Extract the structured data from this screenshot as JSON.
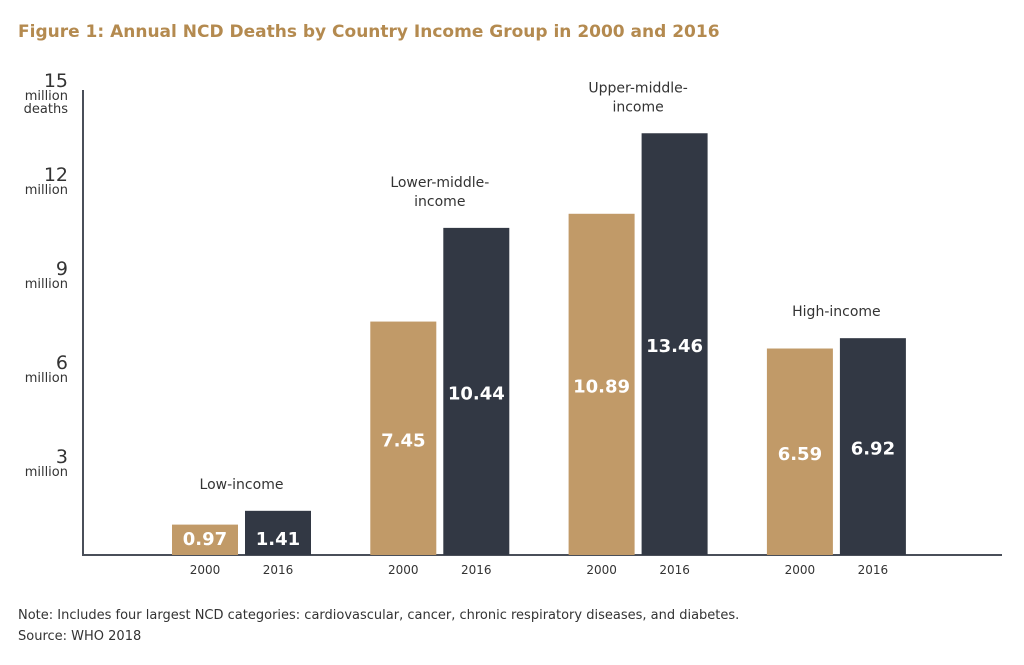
{
  "chart_data": {
    "type": "bar",
    "title": "Figure 1: Annual NCD Deaths by Country Income Group in 2000 and 2016",
    "categories": [
      "Low-income",
      "Lower-middle-income",
      "Upper-middle-income",
      "High-income"
    ],
    "category_labels": [
      [
        "Low-income"
      ],
      [
        "Lower-middle-",
        "income"
      ],
      [
        "Upper-middle-",
        "income"
      ],
      [
        "High-income"
      ]
    ],
    "series": [
      {
        "name": "2000",
        "values": [
          0.97,
          7.45,
          10.89,
          6.59
        ],
        "color": "#c19a68"
      },
      {
        "name": "2016",
        "values": [
          1.41,
          10.44,
          13.46,
          6.92
        ],
        "color": "#323844"
      }
    ],
    "data_labels": [
      [
        "0.97",
        "7.45",
        "10.89",
        "6.59"
      ],
      [
        "1.41",
        "10.44",
        "13.46",
        "6.92"
      ]
    ],
    "ylim": [
      0,
      15
    ],
    "yticks": [
      {
        "value": 3,
        "label": [
          "3",
          "million"
        ]
      },
      {
        "value": 6,
        "label": [
          "6",
          "million"
        ]
      },
      {
        "value": 9,
        "label": [
          "9",
          "million"
        ]
      },
      {
        "value": 12,
        "label": [
          "12",
          "million"
        ]
      },
      {
        "value": 15,
        "label": [
          "15",
          "million",
          "deaths"
        ]
      }
    ],
    "grid": false,
    "legend": "none"
  },
  "notes": {
    "note": "Note: Includes four largest NCD categories: cardiovascular, cancer, chronic respiratory diseases, and diabetes.",
    "source": "Source: WHO 2018"
  }
}
